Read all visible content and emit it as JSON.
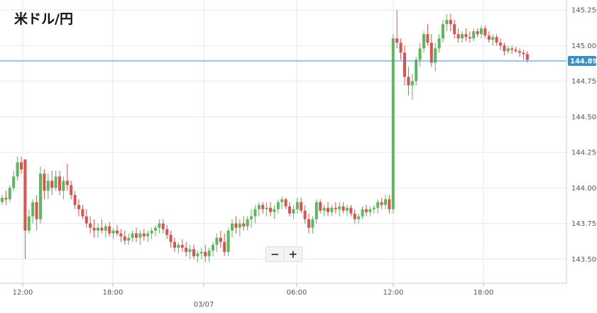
{
  "title": "米ドル/円",
  "zoom": {
    "minus_label": "−",
    "plus_label": "+"
  },
  "colors": {
    "up": "#5cb85c",
    "down": "#d9534f",
    "grid": "#e8e8e8",
    "current_line": "#3b8ec2",
    "current_tag": "#3b8ec2"
  },
  "chart_data": {
    "type": "candlestick",
    "title": "米ドル/円",
    "ylim": [
      143.33,
      145.32
    ],
    "y_ticks": [
      "145.250",
      "145.000",
      "144.750",
      "144.500",
      "144.250",
      "144.000",
      "143.750",
      "143.500"
    ],
    "x_ticks": [
      "12:00",
      "18:00",
      "",
      "06:00",
      "12:00",
      "18:00"
    ],
    "date_label": "03/07",
    "current_price": "144.892",
    "grid": true,
    "candles": [
      [
        143.9,
        143.95,
        143.88,
        143.93
      ],
      [
        143.93,
        143.98,
        143.88,
        143.92
      ],
      [
        143.92,
        144.02,
        143.9,
        144.0
      ],
      [
        144.0,
        144.12,
        143.98,
        144.08
      ],
      [
        144.08,
        144.22,
        144.05,
        144.18
      ],
      [
        144.18,
        144.22,
        144.1,
        144.13
      ],
      [
        144.2,
        144.2,
        143.5,
        143.7
      ],
      [
        143.7,
        143.85,
        143.68,
        143.8
      ],
      [
        143.8,
        143.92,
        143.75,
        143.9
      ],
      [
        143.9,
        143.95,
        143.7,
        143.78
      ],
      [
        143.78,
        144.15,
        143.75,
        144.1
      ],
      [
        144.1,
        144.13,
        143.92,
        143.98
      ],
      [
        143.98,
        144.1,
        143.92,
        144.05
      ],
      [
        144.05,
        144.12,
        143.95,
        144.0
      ],
      [
        144.0,
        144.12,
        143.98,
        144.08
      ],
      [
        144.08,
        144.12,
        143.95,
        143.98
      ],
      [
        143.98,
        144.08,
        143.92,
        144.05
      ],
      [
        144.05,
        144.17,
        143.98,
        144.02
      ],
      [
        144.02,
        144.05,
        143.92,
        143.95
      ],
      [
        143.95,
        143.98,
        143.85,
        143.88
      ],
      [
        143.88,
        143.92,
        143.8,
        143.85
      ],
      [
        143.85,
        143.88,
        143.78,
        143.8
      ],
      [
        143.8,
        143.85,
        143.72,
        143.75
      ],
      [
        143.75,
        143.8,
        143.68,
        143.72
      ],
      [
        143.72,
        143.78,
        143.65,
        143.7
      ],
      [
        143.7,
        143.75,
        143.65,
        143.72
      ],
      [
        143.72,
        143.78,
        143.68,
        143.7
      ],
      [
        143.7,
        143.75,
        143.65,
        143.73
      ],
      [
        143.73,
        143.76,
        143.66,
        143.68
      ],
      [
        143.68,
        143.72,
        143.64,
        143.7
      ],
      [
        143.7,
        143.74,
        143.66,
        143.68
      ],
      [
        143.68,
        143.71,
        143.62,
        143.66
      ],
      [
        143.66,
        143.7,
        143.6,
        143.63
      ],
      [
        143.63,
        143.68,
        143.6,
        143.65
      ],
      [
        143.65,
        143.7,
        143.62,
        143.68
      ],
      [
        143.68,
        143.72,
        143.62,
        143.65
      ],
      [
        143.65,
        143.7,
        143.6,
        143.68
      ],
      [
        143.68,
        143.71,
        143.63,
        143.66
      ],
      [
        143.66,
        143.7,
        143.62,
        143.68
      ],
      [
        143.68,
        143.72,
        143.64,
        143.7
      ],
      [
        143.7,
        143.74,
        143.66,
        143.72
      ],
      [
        143.72,
        143.78,
        143.68,
        143.75
      ],
      [
        143.75,
        143.78,
        143.68,
        143.71
      ],
      [
        143.71,
        143.74,
        143.64,
        143.67
      ],
      [
        143.67,
        143.7,
        143.58,
        143.62
      ],
      [
        143.62,
        143.65,
        143.55,
        143.58
      ],
      [
        143.58,
        143.62,
        143.54,
        143.6
      ],
      [
        143.6,
        143.64,
        143.55,
        143.58
      ],
      [
        143.58,
        143.62,
        143.52,
        143.55
      ],
      [
        143.55,
        143.6,
        143.5,
        143.57
      ],
      [
        143.57,
        143.6,
        143.5,
        143.52
      ],
      [
        143.52,
        143.56,
        143.48,
        143.54
      ],
      [
        143.54,
        143.58,
        143.5,
        143.55
      ],
      [
        143.55,
        143.6,
        143.48,
        143.52
      ],
      [
        143.52,
        143.58,
        143.48,
        143.56
      ],
      [
        143.56,
        143.62,
        143.52,
        143.6
      ],
      [
        143.6,
        143.68,
        143.55,
        143.65
      ],
      [
        143.65,
        143.7,
        143.58,
        143.62
      ],
      [
        143.62,
        143.68,
        143.52,
        143.55
      ],
      [
        143.55,
        143.72,
        143.52,
        143.7
      ],
      [
        143.7,
        143.78,
        143.65,
        143.75
      ],
      [
        143.75,
        143.8,
        143.68,
        143.72
      ],
      [
        143.72,
        143.78,
        143.66,
        143.75
      ],
      [
        143.75,
        143.8,
        143.7,
        143.73
      ],
      [
        143.73,
        143.8,
        143.7,
        143.78
      ],
      [
        143.78,
        143.85,
        143.72,
        143.8
      ],
      [
        143.8,
        143.88,
        143.75,
        143.85
      ],
      [
        143.85,
        143.9,
        143.8,
        143.88
      ],
      [
        143.88,
        143.9,
        143.82,
        143.85
      ],
      [
        143.85,
        143.9,
        143.8,
        143.86
      ],
      [
        143.86,
        143.9,
        143.8,
        143.83
      ],
      [
        143.83,
        143.88,
        143.78,
        143.85
      ],
      [
        143.85,
        143.92,
        143.82,
        143.9
      ],
      [
        143.9,
        143.94,
        143.85,
        143.92
      ],
      [
        143.92,
        143.93,
        143.85,
        143.87
      ],
      [
        143.87,
        143.9,
        143.8,
        143.82
      ],
      [
        143.82,
        143.88,
        143.78,
        143.85
      ],
      [
        143.85,
        143.93,
        143.82,
        143.9
      ],
      [
        143.9,
        143.93,
        143.82,
        143.84
      ],
      [
        143.84,
        143.88,
        143.75,
        143.78
      ],
      [
        143.78,
        143.82,
        143.68,
        143.72
      ],
      [
        143.72,
        143.8,
        143.68,
        143.78
      ],
      [
        143.78,
        143.92,
        143.75,
        143.9
      ],
      [
        143.9,
        143.92,
        143.82,
        143.84
      ],
      [
        143.84,
        143.88,
        143.8,
        143.86
      ],
      [
        143.86,
        143.9,
        143.8,
        143.83
      ],
      [
        143.83,
        143.88,
        143.8,
        143.86
      ],
      [
        143.86,
        143.9,
        143.82,
        143.85
      ],
      [
        143.85,
        143.9,
        143.8,
        143.87
      ],
      [
        143.87,
        143.9,
        143.82,
        143.84
      ],
      [
        143.84,
        143.88,
        143.8,
        143.86
      ],
      [
        143.86,
        143.88,
        143.8,
        143.82
      ],
      [
        143.82,
        143.85,
        143.75,
        143.78
      ],
      [
        143.78,
        143.82,
        143.75,
        143.8
      ],
      [
        143.8,
        143.87,
        143.78,
        143.85
      ],
      [
        143.85,
        143.88,
        143.8,
        143.83
      ],
      [
        143.83,
        143.87,
        143.8,
        143.85
      ],
      [
        143.85,
        143.88,
        143.82,
        143.86
      ],
      [
        143.86,
        143.92,
        143.82,
        143.9
      ],
      [
        143.9,
        143.93,
        143.85,
        143.88
      ],
      [
        143.88,
        143.95,
        143.85,
        143.92
      ],
      [
        143.92,
        143.95,
        143.82,
        143.85
      ],
      [
        143.85,
        145.08,
        143.82,
        145.05
      ],
      [
        145.05,
        145.25,
        144.98,
        145.02
      ],
      [
        145.02,
        145.05,
        144.9,
        144.95
      ],
      [
        144.95,
        145.0,
        144.72,
        144.78
      ],
      [
        144.78,
        144.85,
        144.65,
        144.72
      ],
      [
        144.72,
        144.8,
        144.62,
        144.75
      ],
      [
        144.75,
        144.92,
        144.72,
        144.9
      ],
      [
        144.9,
        145.02,
        144.85,
        144.98
      ],
      [
        144.98,
        145.1,
        144.95,
        145.08
      ],
      [
        145.08,
        145.15,
        145.0,
        145.02
      ],
      [
        145.02,
        145.08,
        144.85,
        144.88
      ],
      [
        144.88,
        145.02,
        144.82,
        144.98
      ],
      [
        144.98,
        145.08,
        144.95,
        145.05
      ],
      [
        145.05,
        145.18,
        145.02,
        145.15
      ],
      [
        145.15,
        145.22,
        145.1,
        145.18
      ],
      [
        145.18,
        145.22,
        145.1,
        145.15
      ],
      [
        145.15,
        145.18,
        145.05,
        145.08
      ],
      [
        145.08,
        145.12,
        145.02,
        145.05
      ],
      [
        145.05,
        145.1,
        145.02,
        145.08
      ],
      [
        145.08,
        145.12,
        145.03,
        145.06
      ],
      [
        145.06,
        145.1,
        145.02,
        145.05
      ],
      [
        145.05,
        145.12,
        145.03,
        145.1
      ],
      [
        145.1,
        145.12,
        145.06,
        145.08
      ],
      [
        145.08,
        145.14,
        145.05,
        145.12
      ],
      [
        145.12,
        145.14,
        145.05,
        145.07
      ],
      [
        145.07,
        145.1,
        145.02,
        145.04
      ],
      [
        145.04,
        145.08,
        145.0,
        145.06
      ],
      [
        145.06,
        145.08,
        145.0,
        145.02
      ],
      [
        145.02,
        145.05,
        144.97,
        145.0
      ],
      [
        145.0,
        145.02,
        144.93,
        144.96
      ],
      [
        144.96,
        145.0,
        144.94,
        144.98
      ],
      [
        144.98,
        145.0,
        144.94,
        144.97
      ],
      [
        144.97,
        144.99,
        144.95,
        144.96
      ],
      [
        144.96,
        144.98,
        144.92,
        144.95
      ],
      [
        144.95,
        144.97,
        144.9,
        144.94
      ],
      [
        144.94,
        144.96,
        144.88,
        144.9
      ]
    ]
  }
}
